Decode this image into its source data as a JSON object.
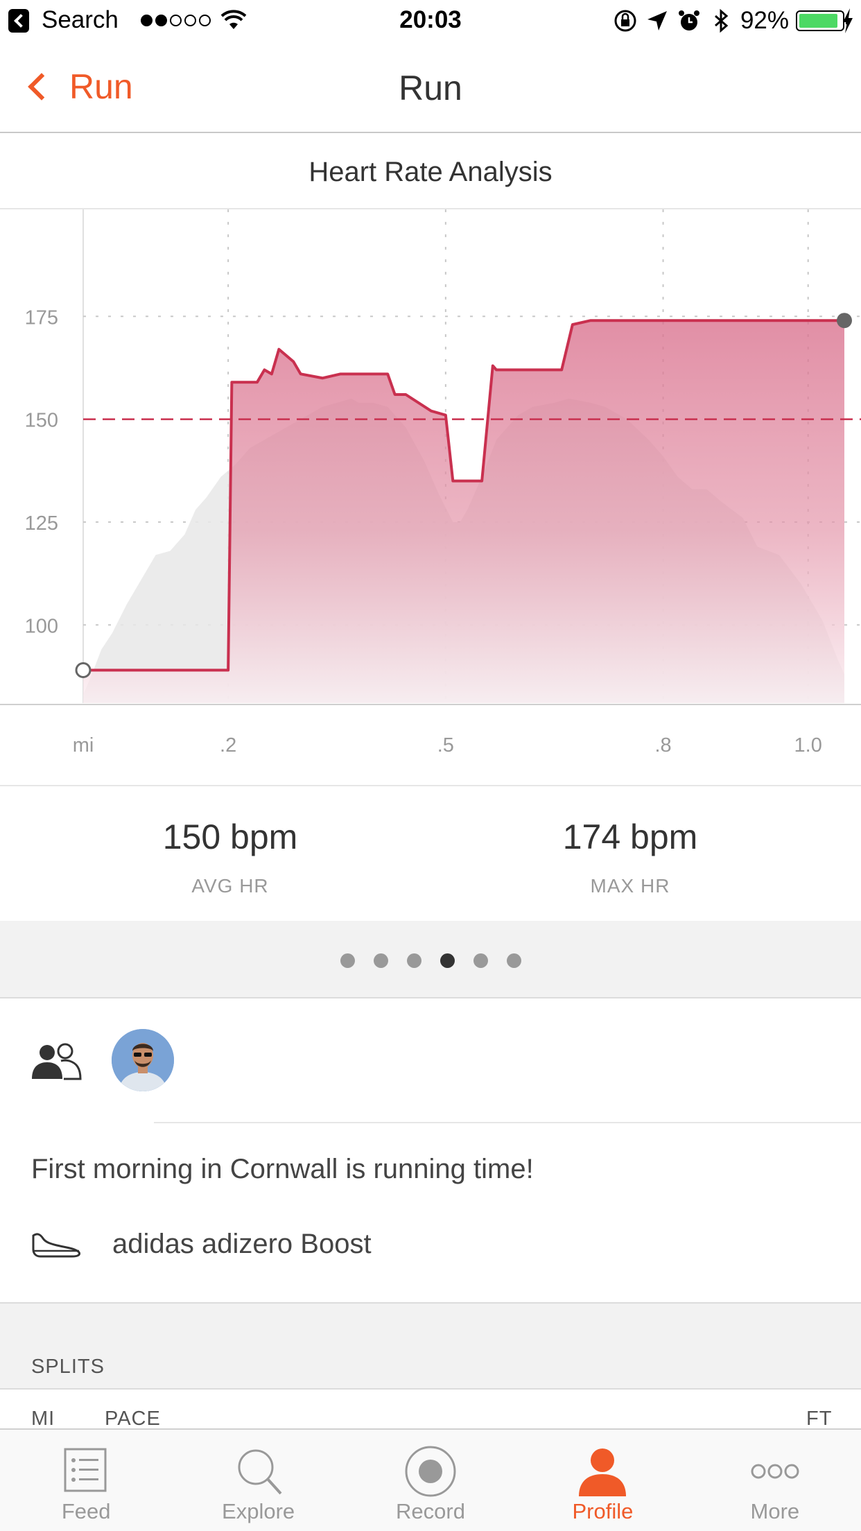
{
  "status_bar": {
    "back_app": "Search",
    "time": "20:03",
    "battery": "92%",
    "battery_level": 0.92
  },
  "navbar": {
    "back_label": "Run",
    "title": "Run"
  },
  "chart": {
    "title": "Heart Rate Analysis"
  },
  "chart_data": {
    "type": "line",
    "title": "Heart Rate Analysis",
    "x_unit_label": "mi",
    "x_ticks": [
      ".2",
      ".5",
      ".8",
      "1.0"
    ],
    "x_tick_values": [
      0.2,
      0.5,
      0.8,
      1.0
    ],
    "y_ticks": [
      "175",
      "150",
      "125",
      "100"
    ],
    "y_tick_values": [
      175,
      150,
      125,
      100
    ],
    "xlim": [
      0,
      1.05
    ],
    "ylim": [
      81,
      201
    ],
    "average_line": 150,
    "series": [
      {
        "type": "area",
        "x": [
          0,
          0.012,
          0.025,
          0.04,
          0.06,
          0.09,
          0.1,
          0.12,
          0.14,
          0.155,
          0.17,
          0.19,
          0.21,
          0.23,
          0.25,
          0.28,
          0.3,
          0.33,
          0.35,
          0.37,
          0.38,
          0.4,
          0.42,
          0.445,
          0.47,
          0.49,
          0.51,
          0.52,
          0.53,
          0.55,
          0.57,
          0.6,
          0.62,
          0.65,
          0.67,
          0.7,
          0.72,
          0.75,
          0.78,
          0.8,
          0.82,
          0.84,
          0.86,
          0.88,
          0.91,
          0.93,
          0.96,
          0.99,
          1.02,
          1.04,
          1.05
        ],
        "values": [
          83,
          88,
          94,
          98,
          105,
          114,
          117,
          118,
          122,
          128,
          131,
          136,
          139,
          143,
          145,
          148,
          150,
          153,
          154,
          155,
          154,
          154,
          153,
          148,
          140,
          132,
          125,
          125,
          128,
          136,
          145,
          151,
          153,
          154,
          155,
          154,
          153,
          150,
          145,
          141,
          136,
          133,
          133,
          130,
          126,
          119,
          117,
          110,
          101,
          92,
          88
        ]
      },
      {
        "type": "line",
        "x": [
          0,
          0.2,
          0.205,
          0.24,
          0.25,
          0.26,
          0.27,
          0.29,
          0.3,
          0.3,
          0.33,
          0.355,
          0.37,
          0.4,
          0.42,
          0.43,
          0.44,
          0.445,
          0.48,
          0.5,
          0.51,
          0.515,
          0.55,
          0.565,
          0.57,
          0.58,
          0.59,
          0.66,
          0.675,
          0.7,
          1.05
        ],
        "values": [
          89,
          89,
          159,
          159,
          162,
          161,
          167,
          164,
          161,
          161,
          160,
          161,
          161,
          161,
          161,
          156,
          156,
          156,
          152,
          151,
          135,
          135,
          135,
          163,
          162,
          162,
          162,
          162,
          173,
          174,
          174
        ]
      }
    ],
    "start_value": 89,
    "end_value": 174
  },
  "stats": {
    "avg_value": "150 bpm",
    "avg_label": "AVG HR",
    "max_value": "174 bpm",
    "max_label": "MAX HR"
  },
  "pager": {
    "count": 6,
    "active_index": 3
  },
  "activity": {
    "description": "First morning in Cornwall is running time!",
    "gear": "adidas adizero Boost"
  },
  "splits": {
    "title": "SPLITS",
    "col_mi": "MI",
    "col_pace": "PACE",
    "col_ft": "FT"
  },
  "tabbar": {
    "items": [
      {
        "label": "Feed",
        "icon": "feed-icon"
      },
      {
        "label": "Explore",
        "icon": "search-icon"
      },
      {
        "label": "Record",
        "icon": "record-icon"
      },
      {
        "label": "Profile",
        "icon": "profile-icon"
      },
      {
        "label": "More",
        "icon": "more-icon"
      }
    ],
    "active_index": 3
  },
  "colors": {
    "accent": "#f05a28",
    "hr_line": "#c9304f",
    "hr_fill": "#dd7f97",
    "elevation": "#e8e8e8",
    "battery": "#4cd964"
  }
}
